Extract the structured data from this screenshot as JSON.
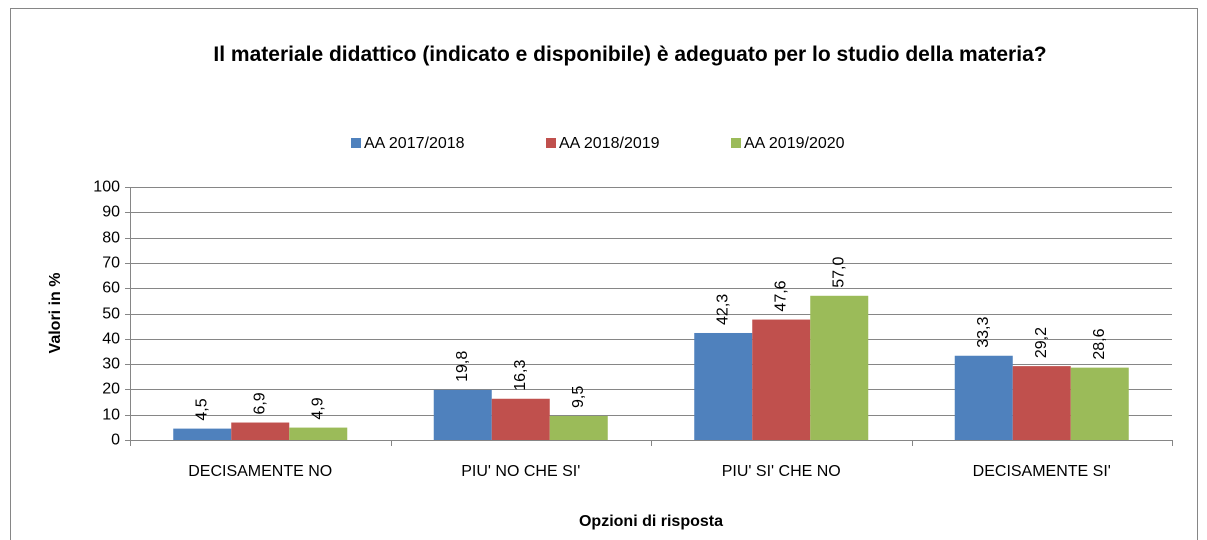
{
  "chart_data": {
    "type": "bar",
    "title": "Il materiale didattico (indicato e disponibile) è adeguato per lo studio della materia?",
    "x_label": "Opzioni di risposta",
    "y_label": "Valori in %",
    "categories": [
      "DECISAMENTE NO",
      "PIU' NO CHE SI'",
      "PIU' SI' CHE NO",
      "DECISAMENTE SI'"
    ],
    "series": [
      {
        "name": "AA 2017/2018",
        "color": "#4f81bd",
        "values": [
          4.5,
          19.8,
          42.3,
          33.3
        ],
        "value_labels": [
          "4,5",
          "19,8",
          "42,3",
          "33,3"
        ]
      },
      {
        "name": "AA 2018/2019",
        "color": "#c0504d",
        "values": [
          6.9,
          16.3,
          47.6,
          29.2
        ],
        "value_labels": [
          "6,9",
          "16,3",
          "47,6",
          "29,2"
        ]
      },
      {
        "name": "AA 2019/2020",
        "color": "#9bbb59",
        "values": [
          4.9,
          9.5,
          57.0,
          28.6
        ],
        "value_labels": [
          "4,9",
          "9,5",
          "57,0",
          "28,6"
        ]
      }
    ],
    "ylim": [
      0,
      100
    ],
    "yticks": [
      0,
      10,
      20,
      30,
      40,
      50,
      60,
      70,
      80,
      90,
      100
    ],
    "grid": true,
    "legend": "top"
  }
}
